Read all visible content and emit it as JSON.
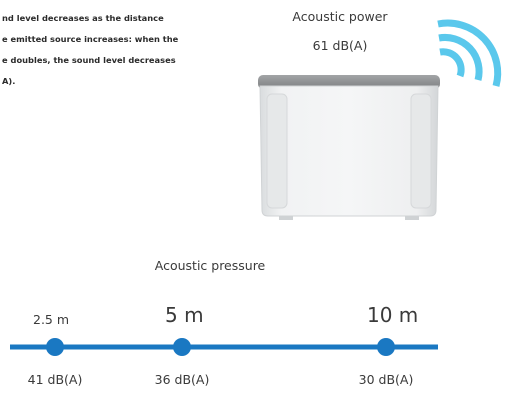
{
  "intro": {
    "line1": "nd level decreases as the distance",
    "line2": "e emitted source increases: when the",
    "line3": "e doubles, the sound level decreases",
    "line4": "A)."
  },
  "acoustic_power": {
    "label": "Acoustic power",
    "value": "61 dB(A)"
  },
  "acoustic_pressure": {
    "label": "Acoustic pressure"
  },
  "measurements": [
    {
      "distance": "2.5 m",
      "level": "41 dB(A)"
    },
    {
      "distance": "5 m",
      "level": "36 dB(A)"
    },
    {
      "distance": "10 m",
      "level": "30 dB(A)"
    }
  ],
  "colors": {
    "axis": "#1a78c2",
    "waves": "#5ac8ec",
    "device_body": "#e9ebec",
    "device_top": "#8f9193"
  }
}
